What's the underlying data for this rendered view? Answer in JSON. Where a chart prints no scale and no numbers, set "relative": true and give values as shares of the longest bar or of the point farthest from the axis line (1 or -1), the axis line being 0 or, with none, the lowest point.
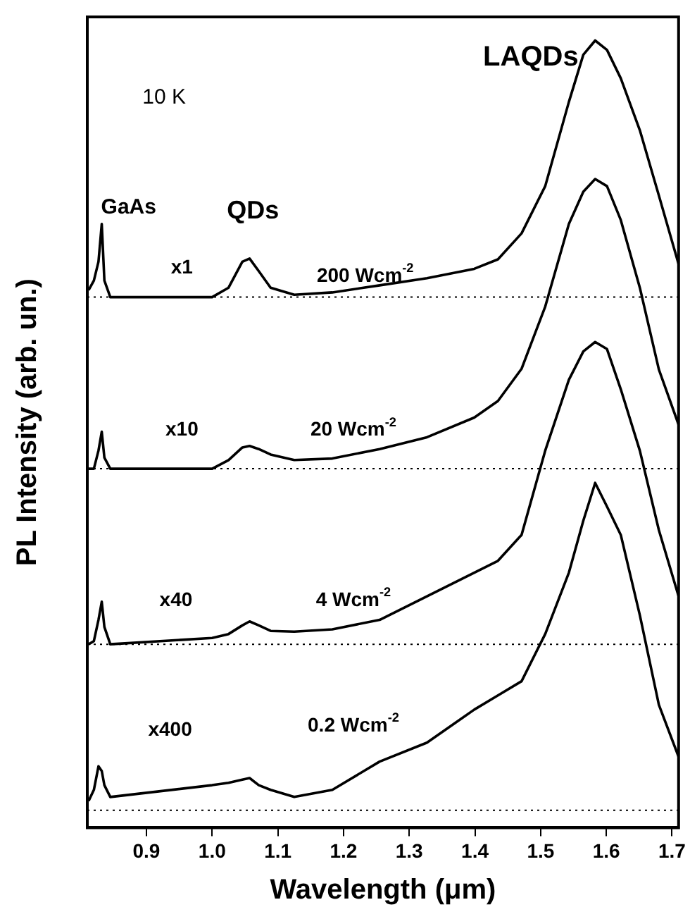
{
  "chart_data": {
    "type": "line",
    "relative": true,
    "xlabel": "Wavelength (μm)",
    "ylabel": "PL Intensity (arb. un.)",
    "xlim": [
      0.81,
      1.71
    ],
    "xticks": [
      0.9,
      {
        "value": 1,
        "label": "1.0"
      },
      1.1,
      1.2,
      1.3,
      1.4,
      1.5,
      1.6,
      1.7
    ],
    "x": [
      0.812,
      0.82,
      0.827,
      0.832,
      0.836,
      0.845,
      1.0,
      1.025,
      1.046,
      1.057,
      1.071,
      1.089,
      1.125,
      1.183,
      1.255,
      1.327,
      1.399,
      1.435,
      1.471,
      1.507,
      1.543,
      1.565,
      1.583,
      1.601,
      1.622,
      1.651,
      1.68,
      1.71
    ],
    "series": [
      {
        "color": "#000000",
        "values": [
          0.683,
          0.695,
          0.719,
          0.767,
          0.695,
          0.674,
          0.674,
          0.686,
          0.719,
          0.723,
          0.707,
          0.686,
          0.677,
          0.68,
          0.689,
          0.698,
          0.71,
          0.722,
          0.755,
          0.815,
          0.922,
          0.982,
          1,
          0.988,
          0.952,
          0.886,
          0.803,
          0.716
        ]
      },
      {
        "color": "#000000",
        "values": [
          0.456,
          0.456,
          0.479,
          0.503,
          0.47,
          0.456,
          0.456,
          0.467,
          0.483,
          0.485,
          0.481,
          0.474,
          0.467,
          0.469,
          0.481,
          0.496,
          0.521,
          0.542,
          0.583,
          0.662,
          0.767,
          0.808,
          0.824,
          0.815,
          0.772,
          0.686,
          0.582,
          0.512
        ]
      },
      {
        "color": "#000000",
        "values": [
          0.233,
          0.237,
          0.264,
          0.287,
          0.255,
          0.233,
          0.241,
          0.246,
          0.257,
          0.262,
          0.257,
          0.25,
          0.249,
          0.252,
          0.264,
          0.294,
          0.324,
          0.339,
          0.372,
          0.479,
          0.569,
          0.605,
          0.617,
          0.608,
          0.557,
          0.479,
          0.378,
          0.294
        ]
      },
      {
        "color": "#000000",
        "values": [
          0.034,
          0.048,
          0.078,
          0.072,
          0.054,
          0.039,
          0.054,
          0.057,
          0.061,
          0.063,
          0.054,
          0.048,
          0.039,
          0.048,
          0.084,
          0.108,
          0.15,
          0.168,
          0.186,
          0.246,
          0.324,
          0.39,
          0.438,
          0.408,
          0.372,
          0.27,
          0.156,
          0.09
        ]
      }
    ],
    "ref_lines": [
      {
        "axis": "y",
        "value": 0.674,
        "color": "#000000",
        "line_style": "dotted"
      },
      {
        "axis": "y",
        "value": 0.456,
        "color": "#000000",
        "line_style": "dotted"
      },
      {
        "axis": "y",
        "value": 0.233,
        "color": "#000000",
        "line_style": "dotted"
      },
      {
        "axis": "y",
        "value": 0.022,
        "color": "#000000",
        "line_style": "dotted"
      }
    ],
    "annotations": [
      "10 K",
      "LAQDs",
      "GaAs",
      "QDs",
      "x1",
      "200 Wcm$^{-2}$",
      "x10",
      "20 Wcm$^{-2}$",
      "x40",
      "4 Wcm$^{-2}$",
      "x400",
      "0.2 Wcm$^{-2}$"
    ],
    "legend": false,
    "grid": false,
    "marker": "none",
    "line_style": "solid"
  }
}
